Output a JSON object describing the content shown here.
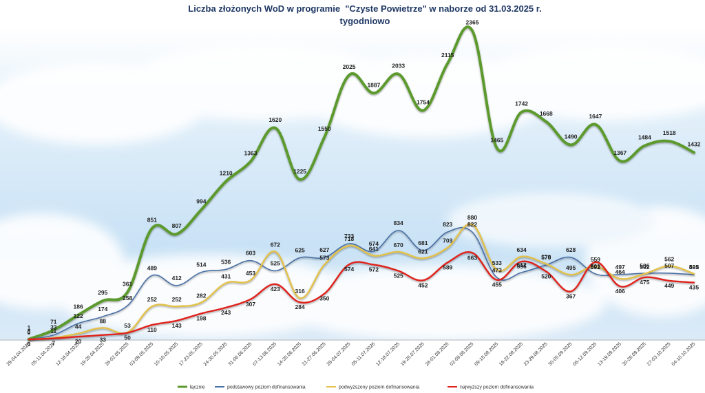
{
  "chart_data": {
    "type": "line",
    "title": "Liczba złożonych WoD w programie  \"Czyste Powietrze\" w naborze od 31.03.2025 r.",
    "subtitle": "tygodniowo",
    "xlabel": "",
    "ylabel": "",
    "ylim": [
      0,
      2400
    ],
    "grid": false,
    "legend_position": "bottom",
    "categories": [
      "29-04.04.2025",
      "05-11.04.2025",
      "12-18.04.2025",
      "19-25.04.2025",
      "26-02.05.2025",
      "03-09.05.2025",
      "10-16.05.2025",
      "17-23.05.2025",
      "24-30.05.2025",
      "31-06.06.2025",
      "07-13.06.2025",
      "14-20.06.2025",
      "21-27.06.2025",
      "28-04.07.2025",
      "05-11.07.2026",
      "12-18.07.2025",
      "19-25.07.2025",
      "26-01.08.2025",
      "02-08.08.2025",
      "09-15.08.2025",
      "16-22.08.2025",
      "23-29.08.2025",
      "30-05.09.2025",
      "06-12.09.2025",
      "13-19.09.2025",
      "20-26.09.2025",
      "27-03.10.2025",
      "04-10.10.2025"
    ],
    "series": [
      {
        "name": "łącznie",
        "color": "#5b9a2e",
        "values": [
          1,
          71,
          186,
          295,
          361,
          851,
          807,
          994,
          1210,
          1363,
          1620,
          1225,
          1550,
          2025,
          1887,
          2033,
          1754,
          2115,
          2365,
          1465,
          1742,
          1668,
          1490,
          1647,
          1367,
          1484,
          1518,
          1432
        ],
        "labels": [
          "1",
          "71",
          "186",
          "295",
          "361",
          "851",
          "807",
          "994",
          "1210",
          "1363",
          "1620",
          "1225",
          "1550",
          "2025",
          "1887",
          "2033",
          "1754",
          "2115",
          "2365",
          "1465",
          "1742",
          "1668",
          "1490",
          "1647",
          "1367",
          "1484",
          "1518",
          "1432"
        ]
      },
      {
        "name": "podstawowy poziom dofinansowania",
        "color": "#4a6fa5",
        "values": [
          0,
          33,
          122,
          174,
          258,
          489,
          412,
          514,
          536,
          603,
          525,
          625,
          627,
          733,
          674,
          834,
          681,
          823,
          822,
          473,
          512,
          570,
          628,
          501,
          497,
          506,
          507,
          495
        ],
        "labels": [
          "0",
          "33",
          "122",
          "174",
          "258",
          "489",
          "412",
          "514",
          "536",
          "603",
          "525",
          "625",
          "627",
          "733",
          "674",
          "834",
          "681",
          "823",
          "822",
          "473",
          "512",
          "570",
          "628",
          "501",
          "497",
          "506",
          "507",
          "495"
        ]
      },
      {
        "name": "podwyższony poziom dofinansowania",
        "color": "#e2c14a",
        "values": [
          0,
          11,
          44,
          88,
          53,
          252,
          252,
          282,
          431,
          453,
          672,
          316,
          573,
          718,
          641,
          670,
          621,
          703,
          880,
          533,
          634,
          578,
          495,
          559,
          464,
          502,
          562,
          502
        ],
        "labels": [
          "0",
          "11",
          "44",
          "88",
          "53",
          "252",
          "252",
          "282",
          "431",
          "453",
          "672",
          "316",
          "573",
          "718",
          "641",
          "670",
          "621",
          "703",
          "880",
          "533",
          "634",
          "578",
          "495",
          "559",
          "464",
          "502",
          "562",
          "502"
        ]
      },
      {
        "name": "najwyższy poziom dofinansowania",
        "color": "#e0221b",
        "values": [
          0,
          7,
          20,
          33,
          50,
          110,
          143,
          198,
          243,
          307,
          423,
          284,
          350,
          574,
          572,
          525,
          452,
          589,
          663,
          455,
          596,
          520,
          367,
          592,
          406,
          475,
          449,
          435
        ],
        "labels": [
          "0",
          "7",
          "20",
          "33",
          "50",
          "110",
          "143",
          "198",
          "243",
          "307",
          "423",
          "284",
          "350",
          "574",
          "572",
          "525",
          "452",
          "589",
          "663",
          "455",
          "596",
          "520",
          "367",
          "592",
          "406",
          "475",
          "449",
          "435"
        ]
      }
    ]
  }
}
